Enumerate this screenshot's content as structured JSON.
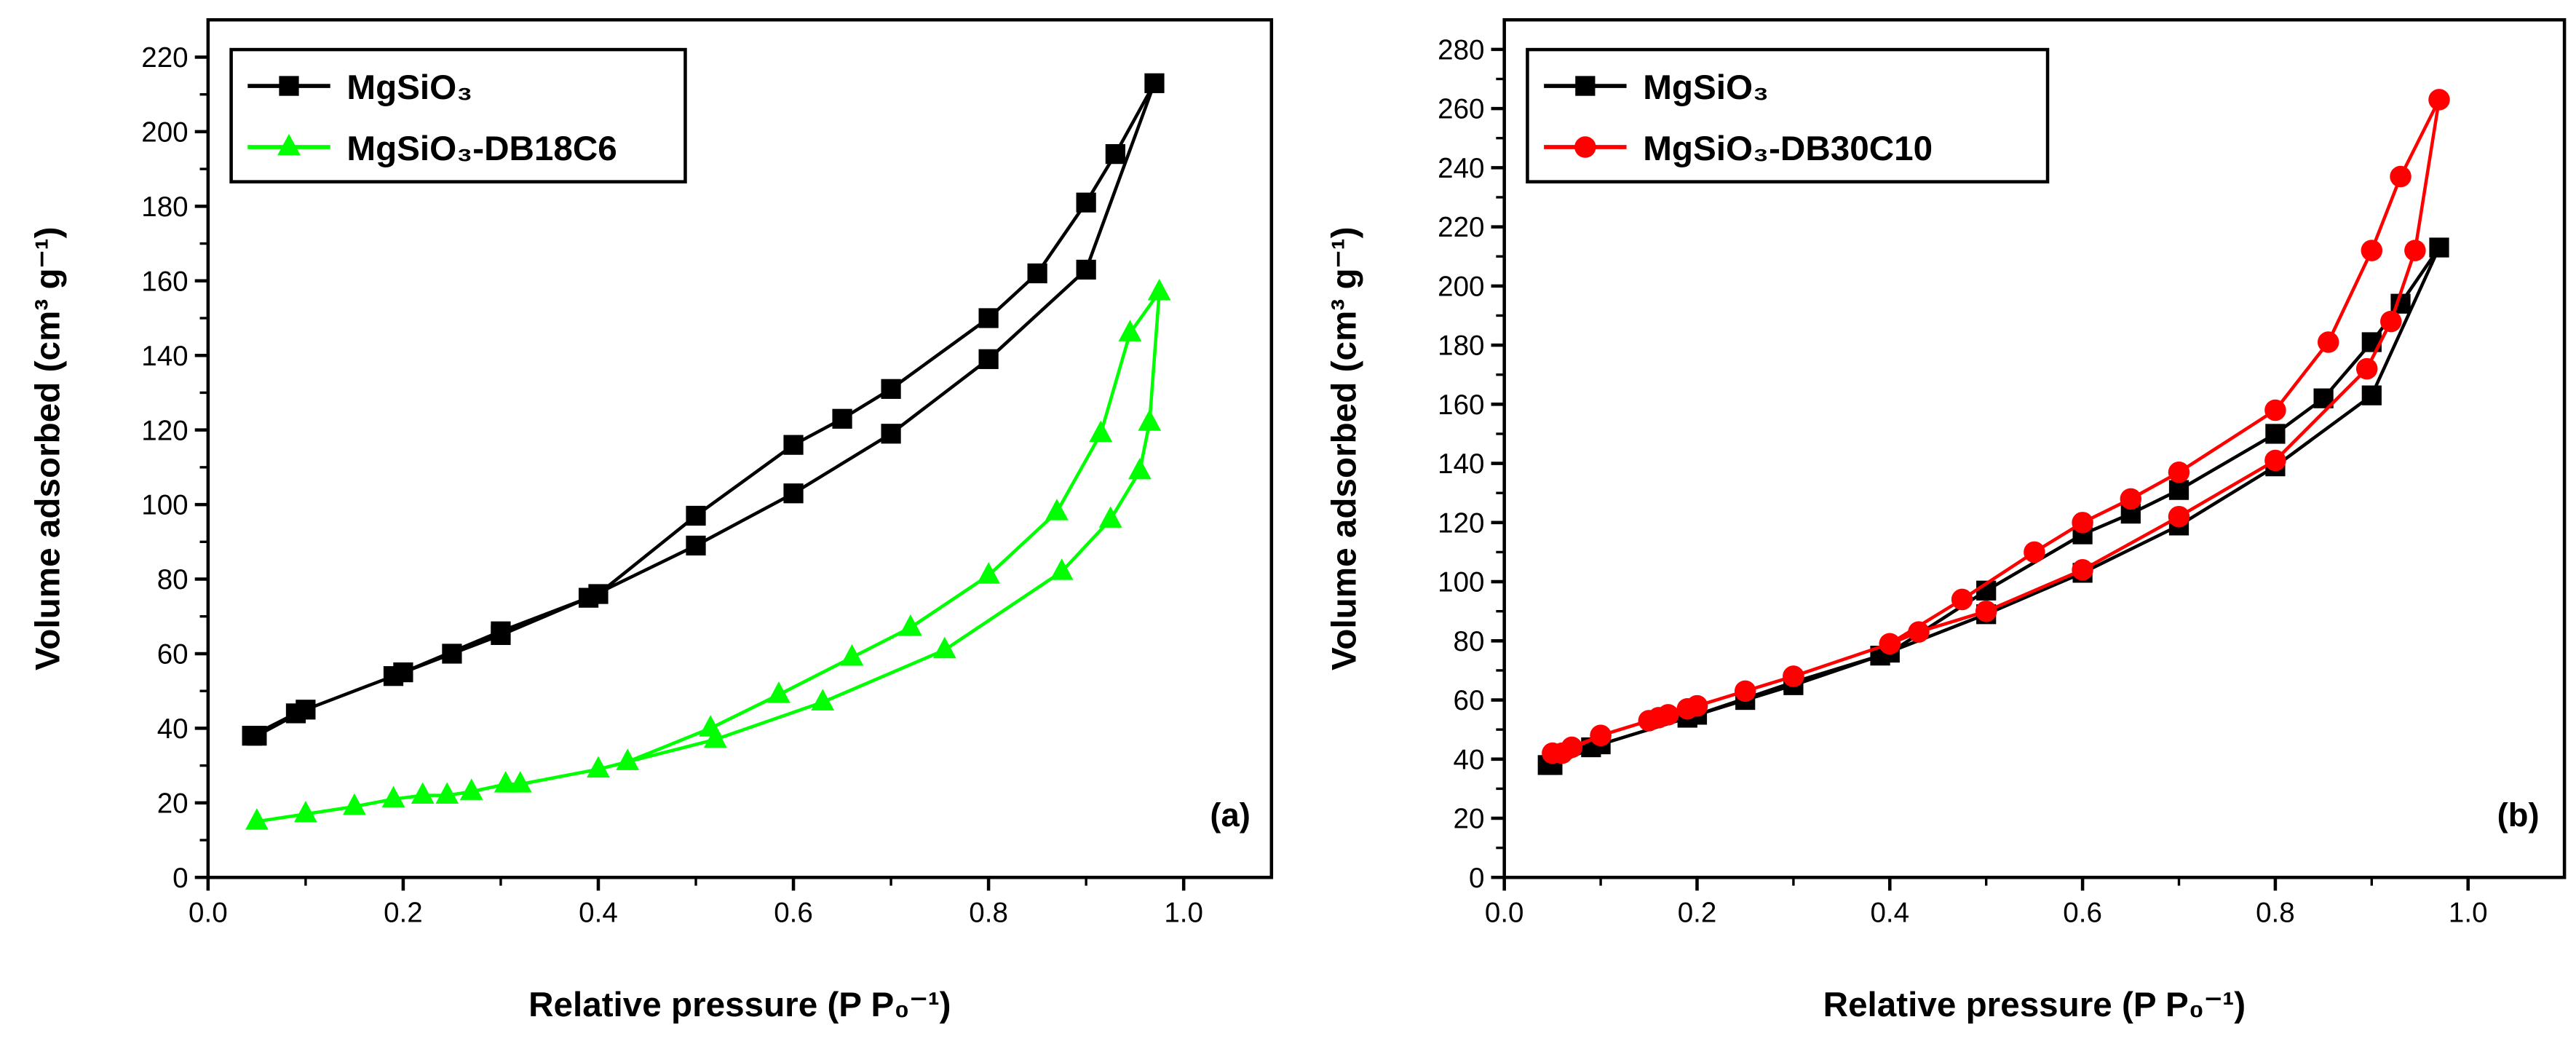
{
  "chart_data": [
    {
      "type": "line",
      "panel_label": "(a)",
      "xlabel": "Relative pressure (P P₀⁻¹)",
      "ylabel": "Volume adsorbed (cm³ g⁻¹)",
      "xlim": [
        0.0,
        1.09
      ],
      "ylim": [
        0,
        230
      ],
      "xticks": [
        "0.0",
        "0.2",
        "0.4",
        "0.6",
        "0.8",
        "1.0"
      ],
      "yticks": [
        "0",
        "20",
        "40",
        "60",
        "80",
        "100",
        "120",
        "140",
        "160",
        "180",
        "200",
        "220"
      ],
      "legend_position": "top-left",
      "series": [
        {
          "name": "MgSiO₃",
          "color": "#000000",
          "marker": "square",
          "x": [
            0.05,
            0.1,
            0.19,
            0.25,
            0.3,
            0.39,
            0.5,
            0.6,
            0.7,
            0.8,
            0.9,
            0.97,
            0.93,
            0.9,
            0.85,
            0.8,
            0.7,
            0.65,
            0.6,
            0.5,
            0.4,
            0.3,
            0.2,
            0.09,
            0.045
          ],
          "y": [
            38,
            45,
            54,
            60,
            65,
            75,
            89,
            103,
            119,
            139,
            163,
            213,
            194,
            181,
            162,
            150,
            131,
            123,
            116,
            97,
            76,
            66,
            55,
            44,
            38
          ]
        },
        {
          "name": "MgSiO₃-DB18C6",
          "color": "#00FF00",
          "marker": "triangle",
          "x": [
            0.05,
            0.1,
            0.15,
            0.19,
            0.22,
            0.245,
            0.27,
            0.305,
            0.32,
            0.4,
            0.52,
            0.63,
            0.755,
            0.875,
            0.925,
            0.955,
            0.965,
            0.975,
            0.945,
            0.915,
            0.87,
            0.8,
            0.72,
            0.66,
            0.585,
            0.515,
            0.43
          ],
          "y": [
            15,
            17,
            19,
            21,
            22,
            22,
            23,
            25,
            25,
            29,
            37,
            47,
            61,
            82,
            96,
            109,
            122,
            157,
            146,
            119,
            98,
            81,
            67,
            59,
            49,
            40,
            31
          ]
        }
      ]
    },
    {
      "type": "line",
      "panel_label": "(b)",
      "xlabel": "Relative pressure (P P₀⁻¹)",
      "ylabel": "Volume adsorbed (cm³ g⁻¹)",
      "xlim": [
        0.0,
        1.1
      ],
      "ylim": [
        0,
        290
      ],
      "xticks": [
        "0.0",
        "0.2",
        "0.4",
        "0.6",
        "0.8",
        "1.0"
      ],
      "yticks": [
        "0",
        "20",
        "40",
        "60",
        "80",
        "100",
        "120",
        "140",
        "160",
        "180",
        "200",
        "220",
        "240",
        "260",
        "280"
      ],
      "legend_position": "top-left",
      "series": [
        {
          "name": "MgSiO₃",
          "color": "#000000",
          "marker": "square",
          "x": [
            0.05,
            0.1,
            0.19,
            0.25,
            0.3,
            0.39,
            0.5,
            0.6,
            0.7,
            0.8,
            0.9,
            0.97,
            0.93,
            0.9,
            0.85,
            0.8,
            0.7,
            0.65,
            0.6,
            0.5,
            0.4,
            0.3,
            0.2,
            0.09,
            0.045
          ],
          "y": [
            38,
            45,
            54,
            60,
            65,
            75,
            89,
            103,
            119,
            139,
            163,
            213,
            194,
            181,
            162,
            150,
            131,
            123,
            116,
            97,
            76,
            66,
            55,
            44,
            38
          ]
        },
        {
          "name": "MgSiO₃-DB30C10",
          "color": "#FF0000",
          "marker": "circle",
          "x": [
            0.05,
            0.07,
            0.1,
            0.15,
            0.17,
            0.19,
            0.2,
            0.25,
            0.3,
            0.4,
            0.43,
            0.5,
            0.6,
            0.7,
            0.8,
            0.895,
            0.92,
            0.945,
            0.97,
            0.93,
            0.9,
            0.855,
            0.8,
            0.7,
            0.65,
            0.6,
            0.55,
            0.475,
            0.4,
            0.3,
            0.2,
            0.16,
            0.1,
            0.06
          ],
          "y": [
            42,
            44,
            48,
            53,
            55,
            57,
            58,
            63,
            68,
            79,
            83,
            90,
            104,
            122,
            141,
            172,
            188,
            212,
            263,
            237,
            212,
            181,
            158,
            137,
            128,
            120,
            110,
            94,
            79,
            68,
            58,
            54,
            48,
            42
          ]
        }
      ]
    }
  ]
}
